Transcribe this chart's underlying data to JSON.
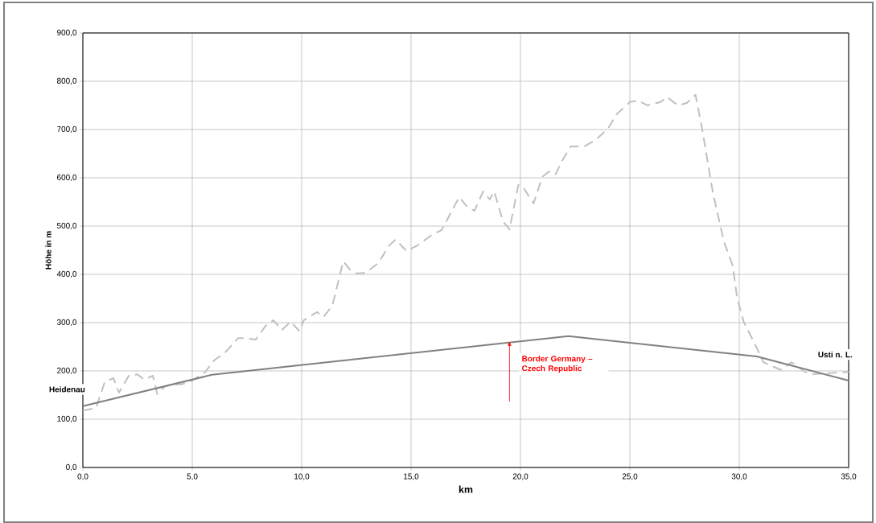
{
  "chart_data": {
    "type": "line",
    "xlabel": "km",
    "ylabel": "Höhe in m",
    "xlim": [
      0,
      35
    ],
    "ylim": [
      0,
      900
    ],
    "xticks": [
      {
        "value": 0,
        "label": "0,0"
      },
      {
        "value": 5,
        "label": "5,0"
      },
      {
        "value": 10,
        "label": "10,0"
      },
      {
        "value": 15,
        "label": "15,0"
      },
      {
        "value": 20,
        "label": "20,0"
      },
      {
        "value": 25,
        "label": "25,0"
      },
      {
        "value": 30,
        "label": "30,0"
      },
      {
        "value": 35,
        "label": "35,0"
      }
    ],
    "yticks": [
      {
        "value": 0,
        "label": "0,0"
      },
      {
        "value": 100,
        "label": "100,0"
      },
      {
        "value": 200,
        "label": "200,0"
      },
      {
        "value": 300,
        "label": "300,0"
      },
      {
        "value": 400,
        "label": "400,0"
      },
      {
        "value": 500,
        "label": "500,0"
      },
      {
        "value": 600,
        "label": "600,0"
      },
      {
        "value": 700,
        "label": "700,0"
      },
      {
        "value": 800,
        "label": "800,0"
      },
      {
        "value": 900,
        "label": "900,0"
      }
    ],
    "grid": true,
    "marker": "none",
    "series": [
      {
        "color": "#c0c0c0",
        "line_style": "dashed",
        "x": [
          0,
          0.6,
          1.0,
          1.4,
          1.65,
          2.1,
          2.5,
          2.8,
          3.2,
          3.4,
          3.75,
          4.1,
          4.5,
          5.0,
          5.6,
          6.0,
          6.5,
          7.1,
          7.4,
          7.9,
          8.35,
          8.7,
          9.1,
          9.5,
          9.9,
          10.1,
          10.7,
          11.0,
          11.4,
          11.9,
          12.2,
          12.5,
          12.9,
          13.5,
          14.0,
          14.3,
          14.8,
          15.3,
          15.9,
          16.4,
          17.2,
          17.6,
          17.9,
          18.3,
          18.6,
          18.8,
          19.2,
          19.5,
          19.9,
          20.1,
          20.6,
          21.0,
          21.3,
          21.6,
          21.9,
          22.3,
          22.9,
          23.4,
          24.0,
          24.4,
          25.0,
          25.4,
          25.8,
          26.4,
          26.7,
          27.2,
          27.6,
          28.0,
          28.3,
          28.8,
          29.3,
          29.7,
          29.9,
          30.2,
          30.8,
          31.1,
          31.9,
          32.4,
          33.0,
          33.3,
          35
        ],
        "values": [
          118,
          123,
          177,
          185,
          155,
          190,
          193,
          182,
          190,
          152,
          168,
          172,
          172,
          180,
          198,
          222,
          238,
          268,
          268,
          265,
          293,
          305,
          285,
          302,
          282,
          305,
          322,
          312,
          335,
          427,
          410,
          402,
          403,
          423,
          460,
          472,
          448,
          460,
          480,
          492,
          560,
          538,
          532,
          572,
          555,
          572,
          510,
          493,
          585,
          582,
          547,
          602,
          613,
          607,
          635,
          665,
          665,
          677,
          702,
          732,
          757,
          760,
          750,
          757,
          767,
          750,
          755,
          772,
          702,
          568,
          468,
          418,
          352,
          302,
          248,
          218,
          202,
          218,
          198,
          193,
          198
        ]
      },
      {
        "color": "#808080",
        "line_style": "solid",
        "x": [
          0,
          5.9,
          22.2,
          30.8,
          35
        ],
        "values": [
          127,
          192,
          272,
          230,
          180
        ]
      }
    ],
    "annotations": [
      "Heidenau",
      "Usti n. L.",
      {
        "text": "Border Germany – Czech Republic",
        "x": 19.5,
        "y": 262
      }
    ]
  }
}
